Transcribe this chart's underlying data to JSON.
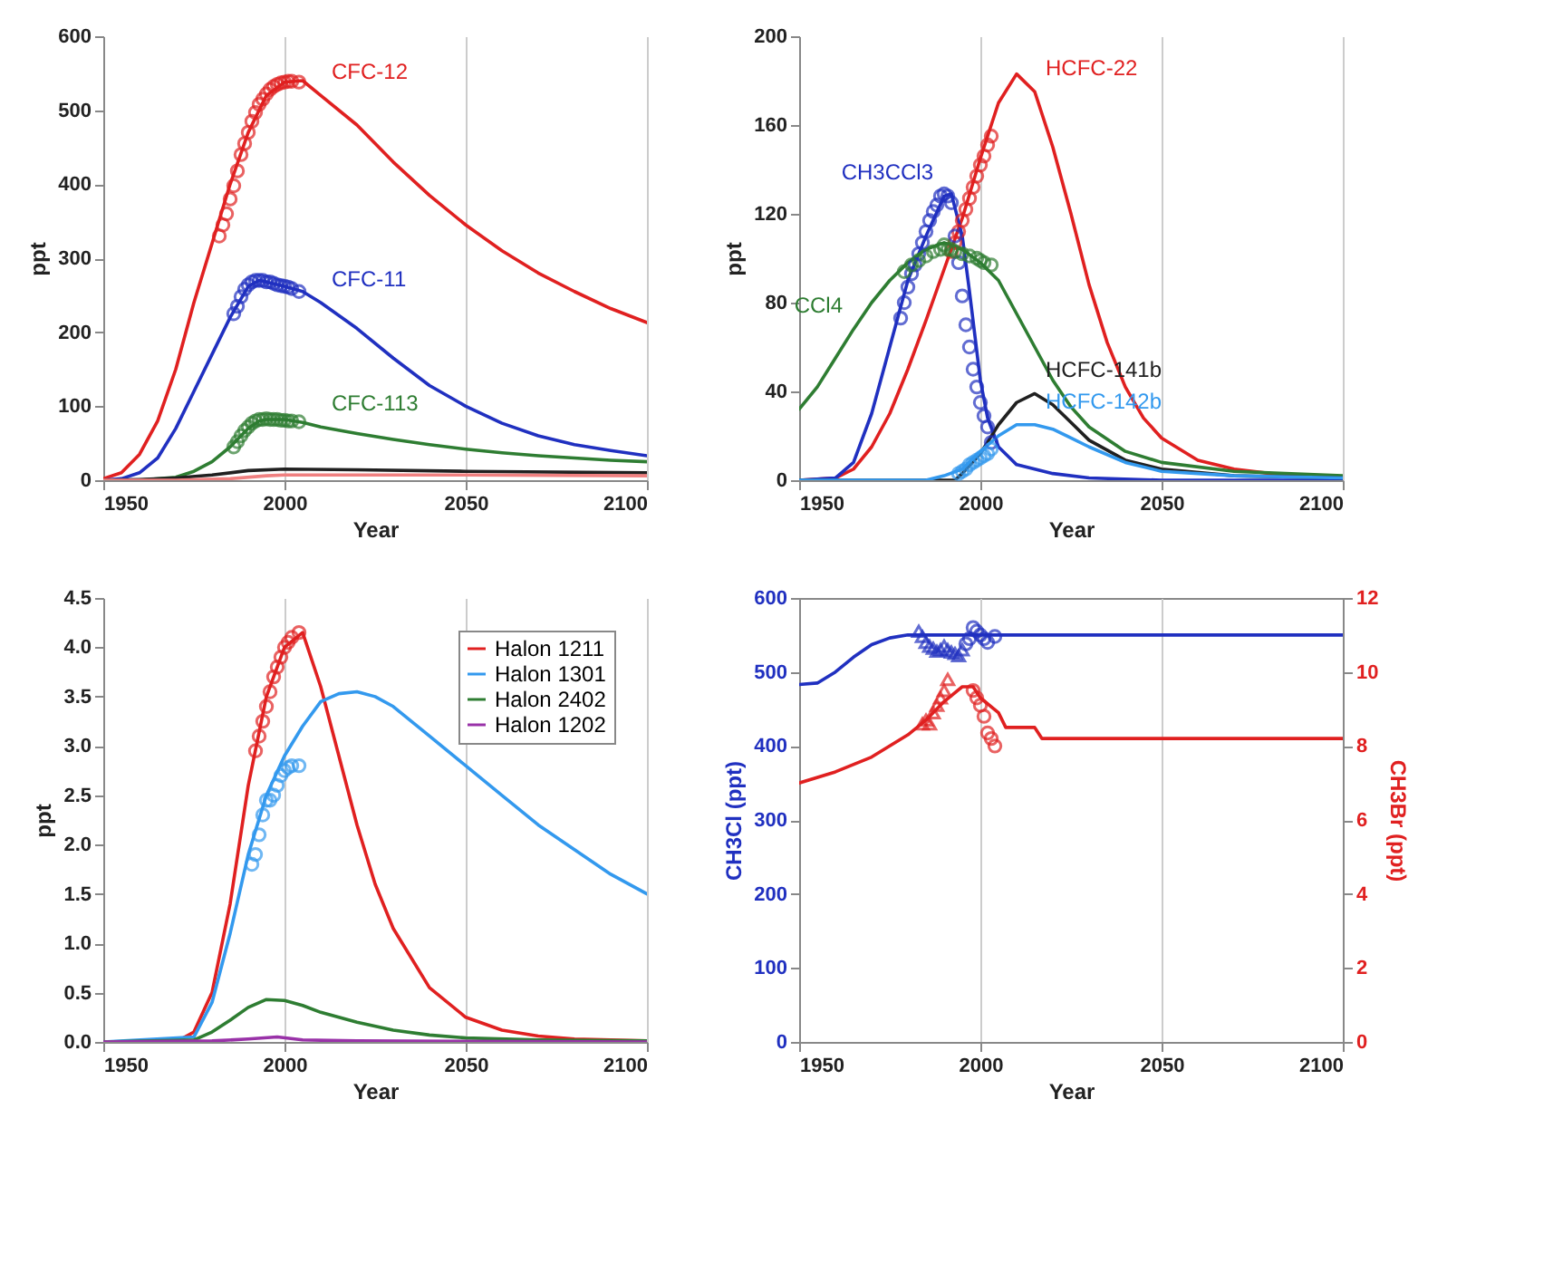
{
  "chart_data": [
    {
      "type": "line",
      "xlabel": "Year",
      "ylabel": "ppt",
      "xlim": [
        1950,
        2100
      ],
      "xticks": [
        1950,
        2000,
        2050,
        2100
      ],
      "ylim": [
        0,
        600
      ],
      "yticks": [
        0,
        100,
        200,
        300,
        400,
        500,
        600
      ],
      "grid": "x",
      "series": [
        {
          "color": "#e02020",
          "x": [
            1950,
            1955,
            1960,
            1965,
            1970,
            1975,
            1980,
            1985,
            1990,
            1995,
            2000,
            2005,
            2010,
            2020,
            2030,
            2040,
            2050,
            2060,
            2070,
            2080,
            2090,
            2100
          ],
          "values": [
            2,
            10,
            35,
            80,
            150,
            240,
            320,
            400,
            470,
            520,
            538,
            540,
            520,
            480,
            430,
            385,
            345,
            310,
            280,
            255,
            232,
            213
          ]
        },
        {
          "color": "#2030c0",
          "x": [
            1950,
            1955,
            1960,
            1965,
            1970,
            1975,
            1980,
            1985,
            1990,
            1993,
            1995,
            2000,
            2005,
            2010,
            2020,
            2030,
            2040,
            2050,
            2060,
            2070,
            2080,
            2090,
            2100
          ],
          "values": [
            0,
            2,
            10,
            30,
            70,
            120,
            170,
            220,
            262,
            270,
            268,
            262,
            255,
            240,
            205,
            165,
            128,
            100,
            77,
            60,
            48,
            40,
            33
          ]
        },
        {
          "color": "#2e7d32",
          "x": [
            1950,
            1960,
            1970,
            1975,
            1980,
            1985,
            1990,
            1993,
            1995,
            2000,
            2005,
            2010,
            2020,
            2030,
            2040,
            2050,
            2060,
            2070,
            2080,
            2090,
            2100
          ],
          "values": [
            0,
            0,
            4,
            12,
            25,
            45,
            70,
            80,
            82,
            82,
            78,
            72,
            63,
            55,
            48,
            42,
            37,
            33,
            30,
            27,
            25
          ]
        },
        {
          "color": "#202020",
          "x": [
            1950,
            1960,
            1970,
            1980,
            1990,
            2000,
            2020,
            2050,
            2100
          ],
          "values": [
            0,
            1,
            3,
            7,
            13,
            15,
            14,
            12,
            10
          ]
        },
        {
          "color": "#f08080",
          "x": [
            1950,
            1970,
            1985,
            1995,
            2000,
            2050,
            2100
          ],
          "values": [
            0,
            0,
            2,
            6,
            7,
            7,
            6
          ]
        },
        {
          "type": "scatter",
          "marker": "circle",
          "color": "#e02020",
          "x": [
            1982,
            1983,
            1984,
            1985,
            1986,
            1987,
            1988,
            1989,
            1990,
            1991,
            1992,
            1993,
            1994,
            1995,
            1996,
            1997,
            1998,
            1999,
            2000,
            2001,
            2002,
            2004
          ],
          "values": [
            330,
            345,
            360,
            380,
            398,
            418,
            440,
            455,
            470,
            485,
            497,
            508,
            515,
            522,
            528,
            532,
            535,
            537,
            538,
            539,
            539,
            538
          ]
        },
        {
          "type": "scatter",
          "marker": "circle",
          "color": "#2030c0",
          "x": [
            1986,
            1987,
            1988,
            1989,
            1990,
            1991,
            1992,
            1993,
            1994,
            1995,
            1996,
            1997,
            1998,
            1999,
            2000,
            2001,
            2002,
            2004
          ],
          "values": [
            225,
            235,
            248,
            258,
            264,
            268,
            270,
            270,
            270,
            268,
            268,
            266,
            264,
            263,
            262,
            261,
            259,
            255
          ]
        },
        {
          "type": "scatter",
          "marker": "circle",
          "color": "#2e7d32",
          "x": [
            1986,
            1987,
            1988,
            1989,
            1990,
            1991,
            1992,
            1993,
            1994,
            1995,
            1996,
            1997,
            1998,
            1999,
            2000,
            2001,
            2002,
            2004
          ],
          "values": [
            45,
            52,
            60,
            67,
            72,
            77,
            80,
            82,
            82,
            83,
            82,
            82,
            82,
            81,
            81,
            80,
            80,
            79
          ]
        }
      ],
      "annotations": [
        {
          "text": "CFC-12",
          "x": 2010,
          "y": 520
        },
        {
          "text": "CFC-11",
          "x": 2010,
          "y": 240
        },
        {
          "text": "CFC-113",
          "x": 2010,
          "y": 72
        }
      ]
    },
    {
      "type": "line",
      "xlabel": "Year",
      "ylabel": "ppt",
      "xlim": [
        1950,
        2100
      ],
      "xticks": [
        1950,
        2000,
        2050,
        2100
      ],
      "ylim": [
        0,
        200
      ],
      "yticks": [
        0,
        40,
        80,
        120,
        160,
        200
      ],
      "grid": "x",
      "series": [
        {
          "color": "#e02020",
          "x": [
            1950,
            1960,
            1965,
            1970,
            1975,
            1980,
            1985,
            1990,
            1995,
            2000,
            2005,
            2010,
            2015,
            2020,
            2025,
            2030,
            2035,
            2040,
            2045,
            2050,
            2060,
            2070,
            2080,
            2100
          ],
          "values": [
            0,
            1,
            5,
            15,
            30,
            50,
            72,
            95,
            118,
            145,
            170,
            183,
            175,
            150,
            120,
            88,
            62,
            42,
            28,
            19,
            9,
            5,
            3,
            1
          ]
        },
        {
          "color": "#2030c0",
          "x": [
            1950,
            1960,
            1965,
            1970,
            1975,
            1980,
            1985,
            1990,
            1992,
            1995,
            1997,
            2000,
            2002,
            2005,
            2010,
            2020,
            2030,
            2050,
            2100
          ],
          "values": [
            0,
            1,
            8,
            30,
            60,
            90,
            110,
            128,
            129,
            110,
            85,
            45,
            28,
            15,
            7,
            3,
            1,
            0,
            0
          ]
        },
        {
          "color": "#2e7d32",
          "x": [
            1950,
            1955,
            1960,
            1965,
            1970,
            1975,
            1980,
            1985,
            1990,
            1995,
            2000,
            2005,
            2010,
            2015,
            2020,
            2025,
            2030,
            2040,
            2050,
            2070,
            2100
          ],
          "values": [
            32,
            42,
            55,
            68,
            80,
            90,
            98,
            104,
            107,
            104,
            98,
            90,
            75,
            60,
            45,
            33,
            24,
            13,
            8,
            4,
            2
          ]
        },
        {
          "color": "#202020",
          "x": [
            1950,
            1993,
            1995,
            2000,
            2005,
            2010,
            2015,
            2020,
            2025,
            2030,
            2040,
            2050,
            2070,
            2100
          ],
          "values": [
            0,
            0,
            3,
            12,
            25,
            35,
            39,
            34,
            26,
            18,
            9,
            5,
            2,
            1
          ]
        },
        {
          "color": "#3399ee",
          "x": [
            1950,
            1985,
            1990,
            1995,
            2000,
            2005,
            2010,
            2015,
            2020,
            2025,
            2030,
            2040,
            2050,
            2070,
            2100
          ],
          "values": [
            0,
            0,
            2,
            5,
            13,
            20,
            25,
            25,
            23,
            19,
            15,
            8,
            4,
            2,
            1
          ]
        },
        {
          "type": "scatter",
          "marker": "circle",
          "color": "#e02020",
          "x": [
            1992,
            1993,
            1994,
            1995,
            1996,
            1997,
            1998,
            1999,
            2000,
            2001,
            2002,
            2003
          ],
          "values": [
            103,
            107,
            112,
            117,
            122,
            127,
            132,
            137,
            142,
            146,
            151,
            155
          ]
        },
        {
          "type": "scatter",
          "marker": "circle",
          "color": "#2030c0",
          "x": [
            1978,
            1979,
            1980,
            1981,
            1982,
            1983,
            1984,
            1985,
            1986,
            1987,
            1988,
            1989,
            1990,
            1991,
            1992,
            1993,
            1994,
            1995,
            1996,
            1997,
            1998,
            1999,
            2000,
            2001,
            2002,
            2003
          ],
          "values": [
            73,
            80,
            87,
            93,
            97,
            102,
            107,
            112,
            117,
            121,
            124,
            128,
            129,
            128,
            125,
            110,
            98,
            83,
            70,
            60,
            50,
            42,
            35,
            29,
            24,
            17
          ]
        },
        {
          "type": "scatter",
          "marker": "circle",
          "color": "#2e7d32",
          "x": [
            1979,
            1981,
            1983,
            1985,
            1987,
            1989,
            1990,
            1991,
            1992,
            1993,
            1995,
            1997,
            1999,
            2000,
            2001,
            2003
          ],
          "values": [
            94,
            97,
            99,
            101,
            103,
            104,
            106,
            104,
            104,
            103,
            102,
            101,
            100,
            99,
            98,
            97
          ]
        },
        {
          "type": "scatter",
          "marker": "circle",
          "color": "#3399ee",
          "x": [
            1994,
            1995,
            1996,
            1997,
            1998,
            1999,
            2000,
            2001,
            2002,
            2003
          ],
          "values": [
            3,
            4,
            5,
            7,
            8,
            9,
            10,
            11,
            12,
            14
          ]
        }
      ],
      "annotations": [
        {
          "text": "HCFC-22",
          "x": 2015,
          "y": 175
        },
        {
          "text": "CH3CCl3",
          "x": 1990,
          "y": 128
        },
        {
          "text": "CCl4",
          "x": 1965,
          "y": 68
        },
        {
          "text": "HCFC-141b",
          "x": 2015,
          "y": 39
        },
        {
          "text": "HCFC-142b",
          "x": 2015,
          "y": 25
        }
      ]
    },
    {
      "type": "line",
      "xlabel": "Year",
      "ylabel": "ppt",
      "xlim": [
        1950,
        2100
      ],
      "xticks": [
        1950,
        2000,
        2050,
        2100
      ],
      "ylim": [
        0,
        4.5
      ],
      "yticks": [
        {
          "value": 0,
          "label": "0.0"
        },
        0.5,
        {
          "value": 1,
          "label": "1.0"
        },
        1.5,
        {
          "value": 2,
          "label": "2.0"
        },
        2.5,
        {
          "value": 3,
          "label": "3.0"
        },
        3.5,
        {
          "value": 4,
          "label": "4.0"
        },
        4.5
      ],
      "grid": "x",
      "legend": "top right",
      "series": [
        {
          "name": "Halon 1211",
          "color": "#e02020",
          "x": [
            1950,
            1970,
            1975,
            1980,
            1985,
            1990,
            1995,
            2000,
            2005,
            2010,
            2015,
            2020,
            2025,
            2030,
            2040,
            2050,
            2060,
            2070,
            2080,
            2100
          ],
          "values": [
            0,
            0,
            0.1,
            0.5,
            1.4,
            2.6,
            3.5,
            4.0,
            4.15,
            3.6,
            2.9,
            2.2,
            1.6,
            1.15,
            0.55,
            0.25,
            0.12,
            0.06,
            0.03,
            0.01
          ]
        },
        {
          "name": "Halon 1301",
          "color": "#3399ee",
          "x": [
            1950,
            1975,
            1980,
            1985,
            1990,
            1995,
            2000,
            2005,
            2010,
            2015,
            2020,
            2025,
            2030,
            2040,
            2050,
            2060,
            2070,
            2080,
            2090,
            2100
          ],
          "values": [
            0,
            0.05,
            0.4,
            1.1,
            1.9,
            2.5,
            2.9,
            3.2,
            3.45,
            3.53,
            3.55,
            3.5,
            3.4,
            3.1,
            2.8,
            2.5,
            2.2,
            1.95,
            1.7,
            1.5
          ]
        },
        {
          "name": "Halon 2402",
          "color": "#2e7d32",
          "x": [
            1950,
            1975,
            1980,
            1985,
            1990,
            1995,
            2000,
            2005,
            2010,
            2020,
            2030,
            2040,
            2050,
            2070,
            2100
          ],
          "values": [
            0,
            0.02,
            0.1,
            0.22,
            0.35,
            0.43,
            0.42,
            0.37,
            0.3,
            0.2,
            0.12,
            0.07,
            0.04,
            0.02,
            0.01
          ]
        },
        {
          "name": "Halon 1202",
          "color": "#9932a8",
          "x": [
            1950,
            1980,
            1990,
            1998,
            2005,
            2020,
            2100
          ],
          "values": [
            0,
            0.01,
            0.03,
            0.05,
            0.02,
            0.01,
            0
          ]
        },
        {
          "type": "scatter",
          "marker": "circle",
          "color": "#e02020",
          "x": [
            1992,
            1993,
            1994,
            1995,
            1996,
            1997,
            1998,
            1999,
            2000,
            2001,
            2002,
            2004
          ],
          "values": [
            2.95,
            3.1,
            3.25,
            3.4,
            3.55,
            3.7,
            3.8,
            3.9,
            4.0,
            4.05,
            4.1,
            4.15
          ]
        },
        {
          "type": "scatter",
          "marker": "circle",
          "color": "#3399ee",
          "x": [
            1991,
            1992,
            1993,
            1994,
            1995,
            1996,
            1997,
            1998,
            1999,
            2000,
            2001,
            2002,
            2004
          ],
          "values": [
            1.8,
            1.9,
            2.1,
            2.3,
            2.45,
            2.45,
            2.5,
            2.6,
            2.7,
            2.75,
            2.78,
            2.8,
            2.8
          ]
        }
      ]
    },
    {
      "type": "line",
      "xlabel": "Year",
      "ylabel": "CH3Cl (ppt)",
      "y2label": "CH3Br (ppt)",
      "xlim": [
        1950,
        2100
      ],
      "xticks": [
        1950,
        2000,
        2050,
        2100
      ],
      "ylim": [
        0,
        600
      ],
      "yticks": [
        0,
        100,
        200,
        300,
        400,
        500,
        600
      ],
      "y2lim": [
        0,
        12
      ],
      "y2ticks": [
        0,
        2,
        4,
        6,
        8,
        10,
        12
      ],
      "grid": "x",
      "series": [
        {
          "color": "#2030c0",
          "x": [
            1950,
            1955,
            1960,
            1965,
            1970,
            1975,
            1980,
            2100
          ],
          "values": [
            483,
            485,
            500,
            520,
            537,
            546,
            550,
            550
          ]
        },
        {
          "axis": "y2",
          "color": "#e02020",
          "x": [
            1950,
            1960,
            1970,
            1980,
            1985,
            1990,
            1995,
            1998,
            2000,
            2005,
            2007,
            2015,
            2017,
            2100
          ],
          "values": [
            7.0,
            7.3,
            7.7,
            8.3,
            8.7,
            9.2,
            9.6,
            9.6,
            9.3,
            8.9,
            8.5,
            8.5,
            8.2,
            8.2
          ]
        },
        {
          "type": "scatter",
          "marker": "triangle",
          "color": "#2030c0",
          "x": [
            1983,
            1984,
            1985,
            1986,
            1987,
            1988,
            1989,
            1990,
            1991,
            1992,
            1993,
            1994,
            1995
          ],
          "values": [
            555,
            548,
            540,
            535,
            532,
            528,
            530,
            535,
            530,
            527,
            525,
            522,
            530
          ]
        },
        {
          "type": "scatter",
          "marker": "circle",
          "color": "#2030c0",
          "x": [
            1996,
            1997,
            1998,
            1999,
            2000,
            2001,
            2002,
            2004
          ],
          "values": [
            538,
            545,
            560,
            555,
            550,
            545,
            540,
            548
          ]
        },
        {
          "type": "scatter",
          "marker": "triangle",
          "axis": "y2",
          "color": "#e02020",
          "x": [
            1984,
            1985,
            1986,
            1987,
            1988,
            1989,
            1990,
            1991
          ],
          "values": [
            8.6,
            8.7,
            8.6,
            8.9,
            9.1,
            9.3,
            9.5,
            9.8
          ]
        },
        {
          "type": "scatter",
          "marker": "circle",
          "axis": "y2",
          "color": "#e02020",
          "x": [
            1998,
            1999,
            2000,
            2001,
            2002,
            2003,
            2004
          ],
          "values": [
            9.5,
            9.3,
            9.1,
            8.8,
            8.35,
            8.2,
            8.0
          ]
        }
      ]
    }
  ]
}
